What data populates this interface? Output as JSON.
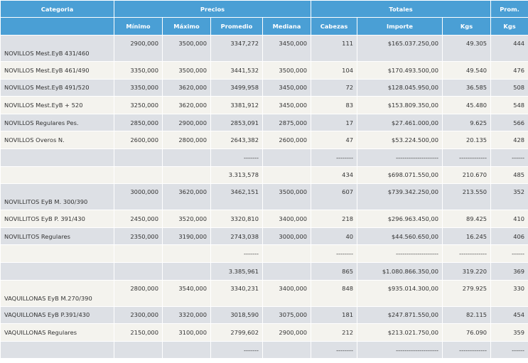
{
  "header": {
    "top": {
      "categoria": "Categoria",
      "precios": "Precios",
      "totales": "Totales",
      "prom": "Prom."
    },
    "sub": [
      "Mínimo",
      "Máximo",
      "Promedio",
      "Mediana",
      "Cabezas",
      "Importe",
      "Kgs",
      "Kgs"
    ]
  },
  "rows": [
    {
      "cells": [
        "NOVILLOS Mest.EyB 431/460",
        "2900,000",
        "3500,000",
        "3347,272",
        "3450,000",
        "111",
        "$165.037.250,00",
        "49.305",
        "444"
      ]
    },
    {
      "cells": [
        "NOVILLOS Mest.EyB 461/490",
        "3350,000",
        "3500,000",
        "3441,532",
        "3500,000",
        "104",
        "$170.493.500,00",
        "49.540",
        "476"
      ]
    },
    {
      "cells": [
        "NOVILLOS Mest.EyB 491/520",
        "3350,000",
        "3620,000",
        "3499,958",
        "3450,000",
        "72",
        "$128.045.950,00",
        "36.585",
        "508"
      ]
    },
    {
      "cells": [
        "NOVILLOS Mest.EyB + 520",
        "3250,000",
        "3620,000",
        "3381,912",
        "3450,000",
        "83",
        "$153.809.350,00",
        "45.480",
        "548"
      ]
    },
    {
      "cells": [
        "NOVILLOS Regulares Pes.",
        "2850,000",
        "2900,000",
        "2853,091",
        "2875,000",
        "17",
        "$27.461.000,00",
        "9.625",
        "566"
      ]
    },
    {
      "cells": [
        "NOVILLOS Overos N.",
        "2600,000",
        "2800,000",
        "2643,382",
        "2600,000",
        "47",
        "$53.224.500,00",
        "20.135",
        "428"
      ]
    },
    {
      "cells": [
        "",
        "",
        "",
        "-------",
        "",
        "--------",
        "--------------------",
        "-------------",
        "------"
      ]
    },
    {
      "cells": [
        "",
        "",
        "",
        "3.313,578",
        "",
        "434",
        "$698.071.550,00",
        "210.670",
        "485"
      ]
    },
    {
      "cells": [
        "NOVILLITOS EyB M. 300/390",
        "3000,000",
        "3620,000",
        "3462,151",
        "3500,000",
        "607",
        "$739.342.250,00",
        "213.550",
        "352"
      ]
    },
    {
      "cells": [
        "NOVILLITOS EyB P. 391/430",
        "2450,000",
        "3520,000",
        "3320,810",
        "3400,000",
        "218",
        "$296.963.450,00",
        "89.425",
        "410"
      ]
    },
    {
      "cells": [
        "NOVILLITOS Regulares",
        "2350,000",
        "3190,000",
        "2743,038",
        "3000,000",
        "40",
        "$44.560.650,00",
        "16.245",
        "406"
      ]
    },
    {
      "cells": [
        "",
        "",
        "",
        "-------",
        "",
        "--------",
        "--------------------",
        "-------------",
        "------"
      ]
    },
    {
      "cells": [
        "",
        "",
        "",
        "3.385,961",
        "",
        "865",
        "$1.080.866.350,00",
        "319.220",
        "369"
      ]
    },
    {
      "cells": [
        "VAQUILLONAS EyB M.270/390",
        "2800,000",
        "3540,000",
        "3340,231",
        "3400,000",
        "848",
        "$935.014.300,00",
        "279.925",
        "330"
      ]
    },
    {
      "cells": [
        "VAQUILLONAS EyB P.391/430",
        "2300,000",
        "3320,000",
        "3018,590",
        "3075,000",
        "181",
        "$247.871.550,00",
        "82.115",
        "454"
      ]
    },
    {
      "cells": [
        "VAQUILLONAS Regulares",
        "2150,000",
        "3100,000",
        "2799,602",
        "2900,000",
        "212",
        "$213.021.750,00",
        "76.090",
        "359"
      ]
    },
    {
      "cells": [
        "",
        "",
        "",
        "-------",
        "",
        "--------",
        "--------------------",
        "-------------",
        "------"
      ]
    }
  ]
}
